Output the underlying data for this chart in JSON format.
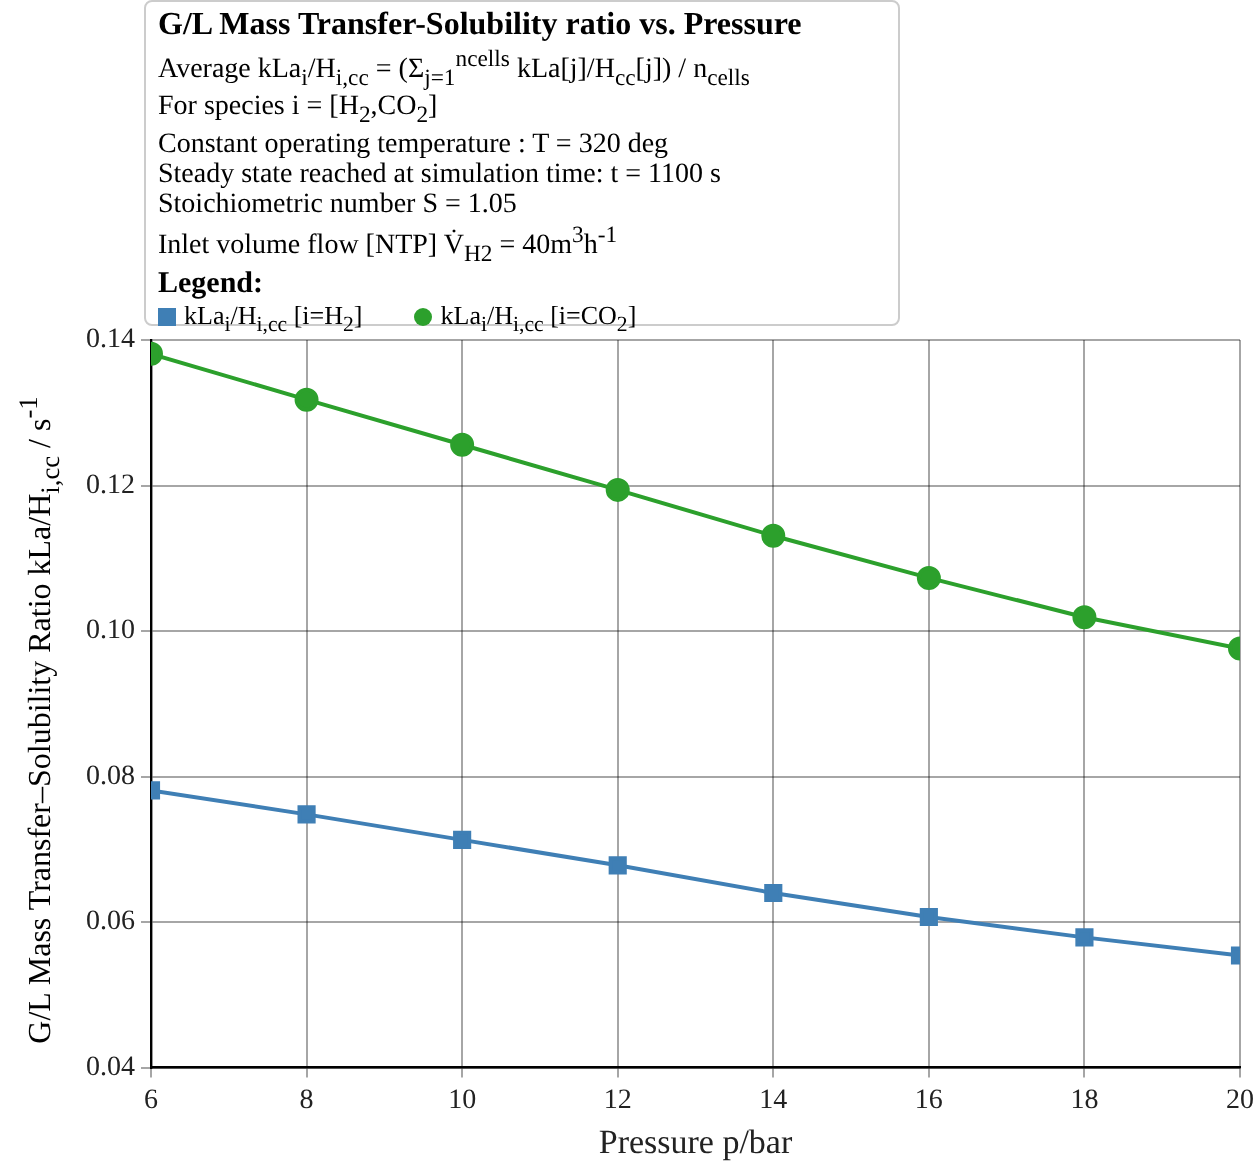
{
  "chart_data": {
    "type": "line",
    "title": "G/L Mass Transfer-Solubility ratio vs. Pressure",
    "annotations": [
      "Average kLa$_{i}$/H$_{i,cc}$ = (Σ$_{j=1}$$^{ncells}$ kLa[j]/H$_{cc}$[j]) / n$_{cells}$",
      "For species i = [H$_{2}$,CO$_{2}$]",
      "Constant operating temperature : T = 320 deg",
      "Steady state reached at simulation time: t = 1100 s",
      "Stoichiometric number S = 1.05",
      "Inlet volume flow [NTP] V̇$_{H2}$ = 40m$^{3}$h$^{-1}$"
    ],
    "legend_title": "Legend:",
    "xlabel": "Pressure p/bar",
    "ylabel": "G/L Mass Transfer–Solubility Ratio kLa/H$_{i,cc}$ / s$^{-1}$",
    "x": [
      6,
      8,
      10,
      12,
      14,
      16,
      18,
      20
    ],
    "series": [
      {
        "name": "kLa$_{i}$/H$_{i,cc}$ [i=H$_{2}$]",
        "color": "#3f7fb5",
        "marker": "square",
        "values": [
          0.0781,
          0.0748,
          0.0713,
          0.0678,
          0.064,
          0.0607,
          0.0579,
          0.0554
        ]
      },
      {
        "name": "kLa$_{i}$/H$_{i,cc}$ [i=CO$_{2}$]",
        "color": "#2ca02c",
        "marker": "circle",
        "values": [
          0.1381,
          0.1318,
          0.1256,
          0.1194,
          0.1131,
          0.1073,
          0.1019,
          0.0976
        ]
      }
    ],
    "xlim": [
      6,
      20
    ],
    "xticks": [
      6,
      8,
      10,
      12,
      14,
      16,
      18,
      20
    ],
    "ylim": [
      0.04,
      0.14
    ],
    "yticks": [
      0.04,
      0.06,
      0.08,
      {
        "value": 0.1,
        "label": "0.10"
      },
      0.12,
      0.14
    ],
    "grid": true,
    "legend": "top",
    "line_style": "solid"
  }
}
